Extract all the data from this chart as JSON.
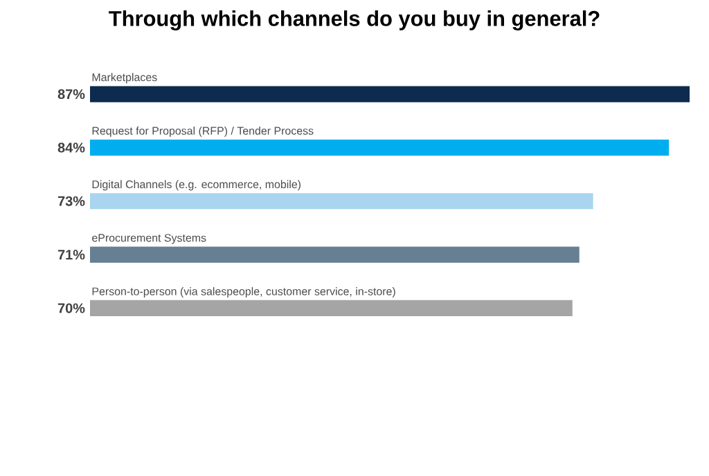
{
  "chart_data": {
    "type": "bar",
    "orientation": "horizontal",
    "title": "Through which channels do you buy in general?",
    "categories": [
      "Marketplaces",
      "Request for Proposal (RFP) / Tender Process",
      "Digital Channels (e.g. ecommerce, mobile)",
      "eProcurement Systems",
      "Person-to-person (via salespeople, customer service, in-store)"
    ],
    "values": [
      87,
      84,
      73,
      71,
      70
    ],
    "value_labels": [
      "87%",
      "84%",
      "73%",
      "71%",
      "70%"
    ],
    "colors": [
      "#0d2b4e",
      "#00aeef",
      "#a9d5ee",
      "#677f93",
      "#a5a5a5"
    ]
  }
}
